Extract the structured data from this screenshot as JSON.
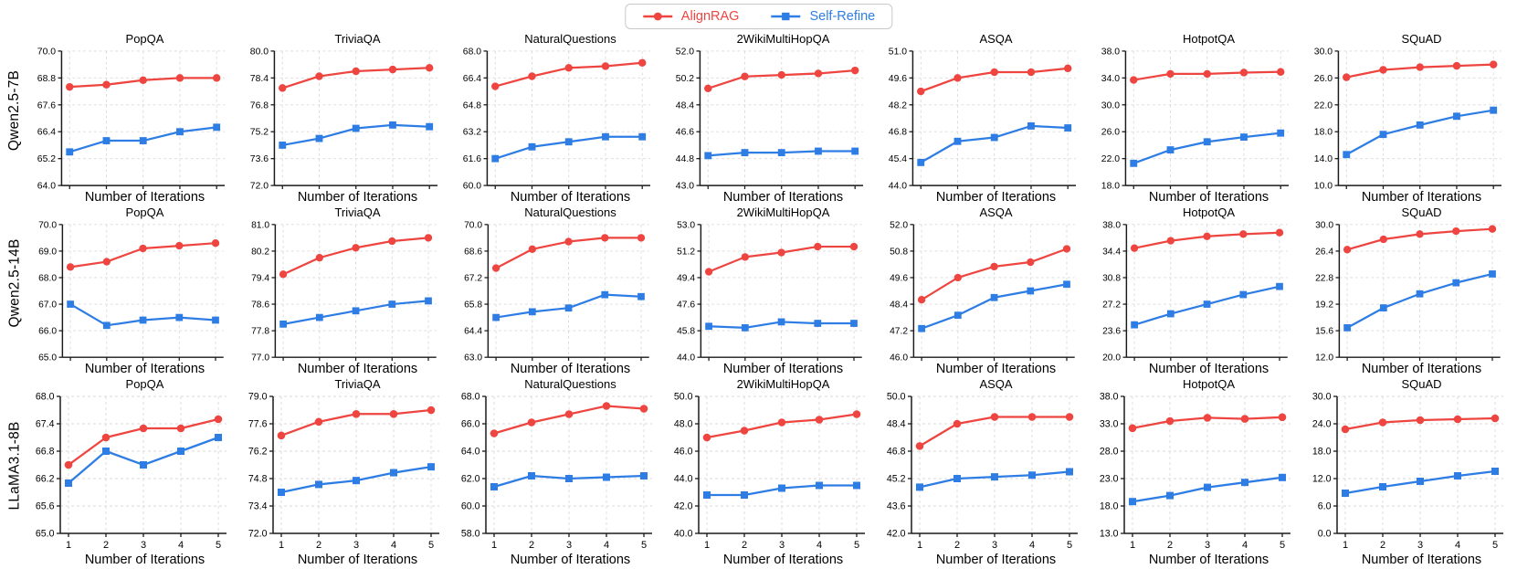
{
  "legend": {
    "items": [
      {
        "label": "AlignRAG",
        "color": "#ee4540",
        "marker": "circle"
      },
      {
        "label": "Self-Refine",
        "color": "#2e7de5",
        "marker": "square"
      }
    ]
  },
  "chart_data": {
    "type": "line",
    "x": [
      1,
      2,
      3,
      4,
      5
    ],
    "x_tick_labels": [
      "1",
      "2",
      "3",
      "4",
      "5"
    ],
    "xlabel": "Number of Iterations",
    "grid": true,
    "legend_position": "top-center",
    "row_models": [
      "Qwen2.5-7B",
      "Qwen2.5-14B",
      "LLaMA3.1-8B"
    ],
    "columns": [
      "PopQA",
      "TriviaQA",
      "NaturalQuestions",
      "2WikiMultiHopQA",
      "ASQA",
      "HotpotQA",
      "SQuAD"
    ],
    "plots": [
      {
        "model": "Qwen2.5-7B",
        "dataset": "PopQA",
        "ylim": [
          64.0,
          70.0
        ],
        "series": [
          {
            "name": "AlignRAG",
            "values": [
              68.4,
              68.5,
              68.7,
              68.8,
              68.8
            ]
          },
          {
            "name": "Self-Refine",
            "values": [
              65.5,
              66.0,
              66.0,
              66.4,
              66.6
            ]
          }
        ]
      },
      {
        "model": "Qwen2.5-7B",
        "dataset": "TriviaQA",
        "ylim": [
          72.0,
          80.0
        ],
        "series": [
          {
            "name": "AlignRAG",
            "values": [
              77.8,
              78.5,
              78.8,
              78.9,
              79.0
            ]
          },
          {
            "name": "Self-Refine",
            "values": [
              74.4,
              74.8,
              75.4,
              75.6,
              75.5
            ]
          }
        ]
      },
      {
        "model": "Qwen2.5-7B",
        "dataset": "NaturalQuestions",
        "ylim": [
          60.0,
          68.0
        ],
        "series": [
          {
            "name": "AlignRAG",
            "values": [
              65.9,
              66.5,
              67.0,
              67.1,
              67.3
            ]
          },
          {
            "name": "Self-Refine",
            "values": [
              61.6,
              62.3,
              62.6,
              62.9,
              62.9
            ]
          }
        ]
      },
      {
        "model": "Qwen2.5-7B",
        "dataset": "2WikiMultiHopQA",
        "ylim": [
          43.0,
          52.0
        ],
        "series": [
          {
            "name": "AlignRAG",
            "values": [
              49.5,
              50.3,
              50.4,
              50.5,
              50.7
            ]
          },
          {
            "name": "Self-Refine",
            "values": [
              45.0,
              45.2,
              45.2,
              45.3,
              45.3
            ]
          }
        ]
      },
      {
        "model": "Qwen2.5-7B",
        "dataset": "ASQA",
        "ylim": [
          44.0,
          51.0
        ],
        "series": [
          {
            "name": "AlignRAG",
            "values": [
              48.9,
              49.6,
              49.9,
              49.9,
              50.1
            ]
          },
          {
            "name": "Self-Refine",
            "values": [
              45.2,
              46.3,
              46.5,
              47.1,
              47.0
            ]
          }
        ]
      },
      {
        "model": "Qwen2.5-7B",
        "dataset": "HotpotQA",
        "ylim": [
          18.0,
          38.0
        ],
        "series": [
          {
            "name": "AlignRAG",
            "values": [
              33.7,
              34.6,
              34.6,
              34.8,
              34.9
            ]
          },
          {
            "name": "Self-Refine",
            "values": [
              21.3,
              23.3,
              24.5,
              25.2,
              25.8
            ]
          }
        ]
      },
      {
        "model": "Qwen2.5-7B",
        "dataset": "SQuAD",
        "ylim": [
          10.0,
          30.0
        ],
        "series": [
          {
            "name": "AlignRAG",
            "values": [
              26.1,
              27.2,
              27.6,
              27.8,
              28.0
            ]
          },
          {
            "name": "Self-Refine",
            "values": [
              14.6,
              17.6,
              19.0,
              20.3,
              21.2
            ]
          }
        ]
      },
      {
        "model": "Qwen2.5-14B",
        "dataset": "PopQA",
        "ylim": [
          65.0,
          70.0
        ],
        "series": [
          {
            "name": "AlignRAG",
            "values": [
              68.4,
              68.6,
              69.1,
              69.2,
              69.3
            ]
          },
          {
            "name": "Self-Refine",
            "values": [
              67.0,
              66.2,
              66.4,
              66.5,
              66.4
            ]
          }
        ]
      },
      {
        "model": "Qwen2.5-14B",
        "dataset": "TriviaQA",
        "ylim": [
          77.0,
          81.0
        ],
        "series": [
          {
            "name": "AlignRAG",
            "values": [
              79.5,
              80.0,
              80.3,
              80.5,
              80.6
            ]
          },
          {
            "name": "Self-Refine",
            "values": [
              78.0,
              78.2,
              78.4,
              78.6,
              78.7
            ]
          }
        ]
      },
      {
        "model": "Qwen2.5-14B",
        "dataset": "NaturalQuestions",
        "ylim": [
          63.0,
          70.0
        ],
        "series": [
          {
            "name": "AlignRAG",
            "values": [
              67.7,
              68.7,
              69.1,
              69.3,
              69.3
            ]
          },
          {
            "name": "Self-Refine",
            "values": [
              65.1,
              65.4,
              65.6,
              66.3,
              66.2
            ]
          }
        ]
      },
      {
        "model": "Qwen2.5-14B",
        "dataset": "2WikiMultiHopQA",
        "ylim": [
          44.0,
          53.0
        ],
        "series": [
          {
            "name": "AlignRAG",
            "values": [
              49.8,
              50.8,
              51.1,
              51.5,
              51.5
            ]
          },
          {
            "name": "Self-Refine",
            "values": [
              46.1,
              46.0,
              46.4,
              46.3,
              46.3
            ]
          }
        ]
      },
      {
        "model": "Qwen2.5-14B",
        "dataset": "ASQA",
        "ylim": [
          46.0,
          52.0
        ],
        "series": [
          {
            "name": "AlignRAG",
            "values": [
              48.6,
              49.6,
              50.1,
              50.3,
              50.9
            ]
          },
          {
            "name": "Self-Refine",
            "values": [
              47.3,
              47.9,
              48.7,
              49.0,
              49.3
            ]
          }
        ]
      },
      {
        "model": "Qwen2.5-14B",
        "dataset": "HotpotQA",
        "ylim": [
          20.0,
          38.0
        ],
        "series": [
          {
            "name": "AlignRAG",
            "values": [
              34.8,
              35.8,
              36.4,
              36.7,
              36.9
            ]
          },
          {
            "name": "Self-Refine",
            "values": [
              24.4,
              25.9,
              27.2,
              28.5,
              29.6
            ]
          }
        ]
      },
      {
        "model": "Qwen2.5-14B",
        "dataset": "SQuAD",
        "ylim": [
          12.0,
          30.0
        ],
        "series": [
          {
            "name": "AlignRAG",
            "values": [
              26.6,
              28.0,
              28.7,
              29.1,
              29.4
            ]
          },
          {
            "name": "Self-Refine",
            "values": [
              16.0,
              18.7,
              20.6,
              22.1,
              23.3
            ]
          }
        ]
      },
      {
        "model": "LLaMA3.1-8B",
        "dataset": "PopQA",
        "ylim": [
          65.0,
          68.0
        ],
        "series": [
          {
            "name": "AlignRAG",
            "values": [
              66.5,
              67.1,
              67.3,
              67.3,
              67.5
            ]
          },
          {
            "name": "Self-Refine",
            "values": [
              66.1,
              66.8,
              66.5,
              66.8,
              67.1
            ]
          }
        ]
      },
      {
        "model": "LLaMA3.1-8B",
        "dataset": "TriviaQA",
        "ylim": [
          72.0,
          79.0
        ],
        "series": [
          {
            "name": "AlignRAG",
            "values": [
              77.0,
              77.7,
              78.1,
              78.1,
              78.3
            ]
          },
          {
            "name": "Self-Refine",
            "values": [
              74.1,
              74.5,
              74.7,
              75.1,
              75.4
            ]
          }
        ]
      },
      {
        "model": "LLaMA3.1-8B",
        "dataset": "NaturalQuestions",
        "ylim": [
          58.0,
          68.0
        ],
        "series": [
          {
            "name": "AlignRAG",
            "values": [
              65.3,
              66.1,
              66.7,
              67.3,
              67.1
            ]
          },
          {
            "name": "Self-Refine",
            "values": [
              61.4,
              62.2,
              62.0,
              62.1,
              62.2
            ]
          }
        ]
      },
      {
        "model": "LLaMA3.1-8B",
        "dataset": "2WikiMultiHopQA",
        "ylim": [
          40.0,
          50.0
        ],
        "series": [
          {
            "name": "AlignRAG",
            "values": [
              47.0,
              47.5,
              48.1,
              48.3,
              48.7
            ]
          },
          {
            "name": "Self-Refine",
            "values": [
              42.8,
              42.8,
              43.3,
              43.5,
              43.5
            ]
          }
        ]
      },
      {
        "model": "LLaMA3.1-8B",
        "dataset": "ASQA",
        "ylim": [
          42.0,
          50.0
        ],
        "series": [
          {
            "name": "AlignRAG",
            "values": [
              47.1,
              48.4,
              48.8,
              48.8,
              48.8
            ]
          },
          {
            "name": "Self-Refine",
            "values": [
              44.7,
              45.2,
              45.3,
              45.4,
              45.6
            ]
          }
        ]
      },
      {
        "model": "LLaMA3.1-8B",
        "dataset": "HotpotQA",
        "ylim": [
          13.0,
          38.0
        ],
        "series": [
          {
            "name": "AlignRAG",
            "values": [
              32.2,
              33.5,
              34.1,
              33.9,
              34.2
            ]
          },
          {
            "name": "Self-Refine",
            "values": [
              18.8,
              19.9,
              21.4,
              22.3,
              23.2
            ]
          }
        ]
      },
      {
        "model": "LLaMA3.1-8B",
        "dataset": "SQuAD",
        "ylim": [
          0.0,
          30.0
        ],
        "series": [
          {
            "name": "AlignRAG",
            "values": [
              22.8,
              24.3,
              24.8,
              25.0,
              25.2
            ]
          },
          {
            "name": "Self-Refine",
            "values": [
              8.8,
              10.2,
              11.4,
              12.6,
              13.6
            ]
          }
        ]
      }
    ]
  }
}
